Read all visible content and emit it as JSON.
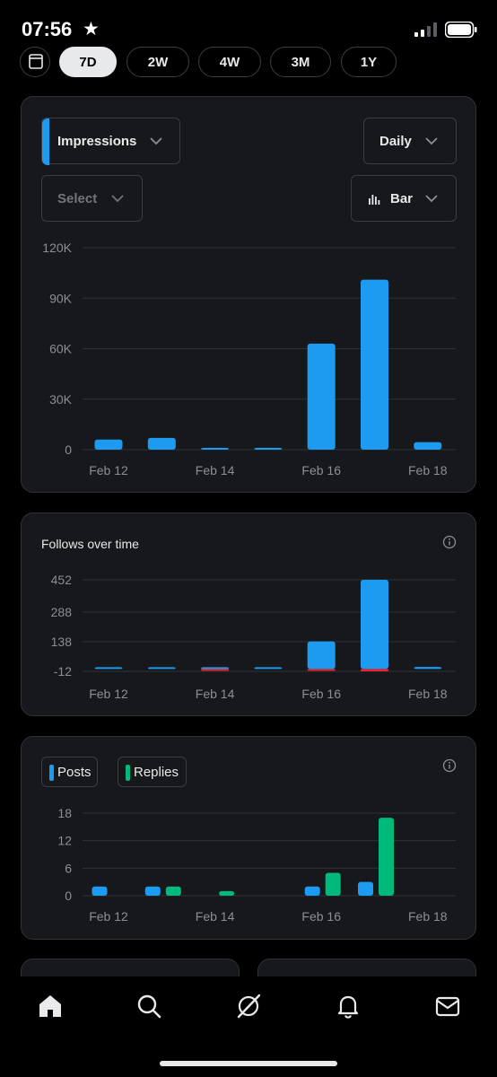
{
  "status_bar": {
    "time": "07:56"
  },
  "range_tabs": [
    {
      "label": "7D",
      "active": true
    },
    {
      "label": "2W",
      "active": false
    },
    {
      "label": "4W",
      "active": false
    },
    {
      "label": "3M",
      "active": false
    },
    {
      "label": "1Y",
      "active": false
    }
  ],
  "impressions_card": {
    "metric_dropdown": "Impressions",
    "interval_dropdown": "Daily",
    "compare_dropdown": "Select",
    "type_dropdown": "Bar"
  },
  "follows_card": {
    "title": "Follows over time"
  },
  "posts_card": {
    "legend_posts": "Posts",
    "legend_replies": "Replies"
  },
  "colors": {
    "blue": "#1d9bf0",
    "green": "#00ba7c",
    "red": "#f4212e",
    "card": "#16181c"
  },
  "icons": [
    "calendar-icon",
    "chevron-down-icon",
    "bar-chart-icon",
    "info-icon",
    "home-icon",
    "search-icon",
    "grok-icon",
    "bell-icon",
    "mail-icon"
  ],
  "chart_data": [
    {
      "type": "bar",
      "title": "",
      "categories": [
        "Feb 12",
        "Feb 13",
        "Feb 14",
        "Feb 15",
        "Feb 16",
        "Feb 17",
        "Feb 18"
      ],
      "x_tick_labels": [
        "Feb 12",
        "Feb 14",
        "Feb 16",
        "Feb 18"
      ],
      "y_ticks": [
        "0",
        "30K",
        "60K",
        "90K",
        "120K"
      ],
      "ylim": [
        0,
        120000
      ],
      "series": [
        {
          "values": [
            6000,
            7000,
            1000,
            500,
            63000,
            101000,
            4500
          ]
        }
      ],
      "grid": true
    },
    {
      "type": "bar",
      "title": "Follows over time",
      "categories": [
        "Feb 12",
        "Feb 13",
        "Feb 14",
        "Feb 15",
        "Feb 16",
        "Feb 17",
        "Feb 18"
      ],
      "x_tick_labels": [
        "Feb 12",
        "Feb 14",
        "Feb 16",
        "Feb 18"
      ],
      "y_ticks": [
        "-12",
        "138",
        "288",
        "452"
      ],
      "ylim": [
        -12,
        452
      ],
      "series": [
        {
          "values": [
            1,
            2,
            0,
            1,
            140,
            452,
            10
          ]
        },
        {
          "values": [
            0,
            0,
            -3,
            0,
            -1,
            -12,
            0
          ]
        }
      ],
      "grid": true
    },
    {
      "type": "bar",
      "title": "",
      "categories": [
        "Feb 12",
        "Feb 13",
        "Feb 14",
        "Feb 15",
        "Feb 16",
        "Feb 17",
        "Feb 18"
      ],
      "x_tick_labels": [
        "Feb 12",
        "Feb 14",
        "Feb 16",
        "Feb 18"
      ],
      "y_ticks": [
        "0",
        "6",
        "12",
        "18"
      ],
      "ylim": [
        0,
        18
      ],
      "series": [
        {
          "name": "Posts",
          "values": [
            2,
            2,
            0,
            0,
            2,
            3,
            0
          ]
        },
        {
          "name": "Replies",
          "values": [
            0,
            2,
            1,
            0,
            5,
            17,
            0
          ]
        }
      ],
      "grid": true
    }
  ]
}
